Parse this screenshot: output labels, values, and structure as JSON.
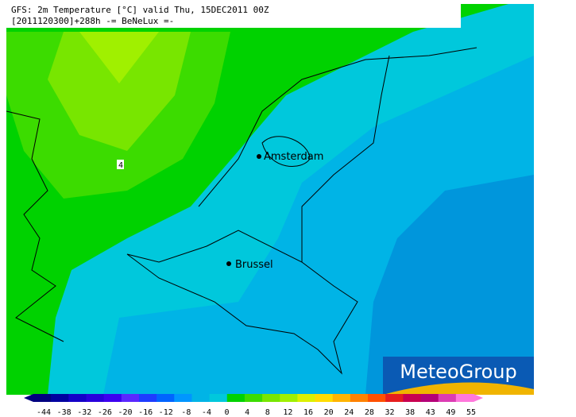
{
  "header": {
    "line1": "GFS: 2m Temperature [°C] valid Thu, 15DEC2011 00Z",
    "line2": "[2011120300]+288h  -= BeNeLux =-"
  },
  "cities": [
    {
      "label": "Amsterdam"
    },
    {
      "label": "Brussel"
    }
  ],
  "contour_label": "4",
  "logo": "MeteoGroup",
  "legend": {
    "labels": [
      "-44",
      "-38",
      "-32",
      "-26",
      "-20",
      "-16",
      "-12",
      "-8",
      "-4",
      "0",
      "4",
      "8",
      "12",
      "16",
      "20",
      "24",
      "28",
      "32",
      "38",
      "43",
      "49",
      "55"
    ]
  }
}
